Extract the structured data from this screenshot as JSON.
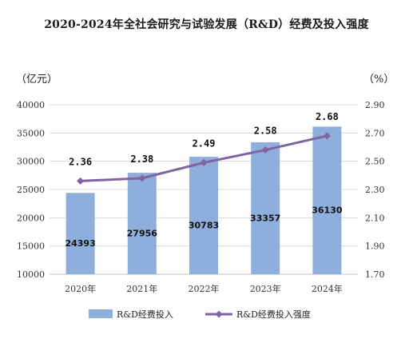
{
  "title": "2020-2024年全社会研究与试验发展（R&D）经费及投入强度",
  "chart_data": {
    "type": "bar",
    "categories": [
      "2020年",
      "2021年",
      "2022年",
      "2023年",
      "2024年"
    ],
    "series": [
      {
        "name": "R&D经费投入",
        "type": "bar",
        "axis": "left",
        "values": [
          24393,
          27956,
          30783,
          33357,
          36130
        ],
        "color": "#8eaedb"
      },
      {
        "name": "R&D经费投入强度",
        "type": "line",
        "axis": "right",
        "values": [
          2.36,
          2.38,
          2.49,
          2.58,
          2.68
        ],
        "color": "#8064a2"
      }
    ],
    "y_left": {
      "unit": "（亿元）",
      "ylim": [
        10000,
        40000
      ],
      "ticks": [
        10000,
        15000,
        20000,
        25000,
        30000,
        35000,
        40000
      ]
    },
    "y_right": {
      "unit": "（%）",
      "ylim": [
        1.7,
        2.9
      ],
      "ticks": [
        "1.70",
        "1.90",
        "2.10",
        "2.30",
        "2.50",
        "2.70",
        "2.90"
      ]
    },
    "legend": {
      "position": "bottom"
    }
  }
}
